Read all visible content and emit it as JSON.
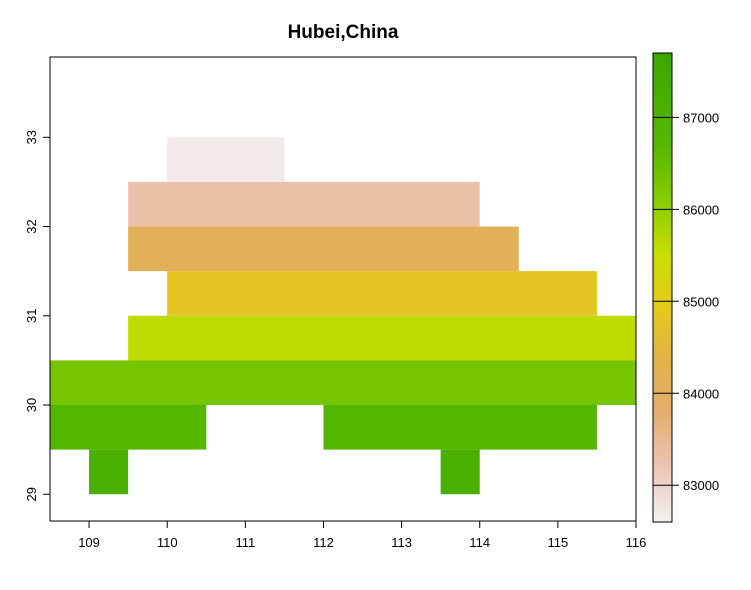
{
  "chart_data": {
    "type": "heatmap",
    "title": "Hubei,China",
    "xlabel": "",
    "ylabel": "",
    "xlim": [
      108.5,
      116
    ],
    "ylim": [
      28.7,
      33.9
    ],
    "x_ticks": [
      109,
      110,
      111,
      112,
      113,
      114,
      115,
      116
    ],
    "y_ticks": [
      29,
      30,
      31,
      32,
      33
    ],
    "cell_size": 0.5,
    "cells": [
      {
        "x0": 110,
        "x1": 111.5,
        "y0": 32.5,
        "y1": 33,
        "value": 82700
      },
      {
        "x0": 109.5,
        "x1": 114,
        "y0": 32,
        "y1": 32.5,
        "value": 83300
      },
      {
        "x0": 109.5,
        "x1": 114.5,
        "y0": 31.5,
        "y1": 32,
        "value": 84100
      },
      {
        "x0": 110,
        "x1": 115.5,
        "y0": 31,
        "y1": 31.5,
        "value": 84800
      },
      {
        "x0": 109.5,
        "x1": 116,
        "y0": 30.5,
        "y1": 31,
        "value": 85600
      },
      {
        "x0": 108.5,
        "x1": 116,
        "y0": 30,
        "y1": 30.5,
        "value": 86300
      },
      {
        "x0": 108.5,
        "x1": 110.5,
        "y0": 29.5,
        "y1": 30,
        "value": 86800
      },
      {
        "x0": 112,
        "x1": 115.5,
        "y0": 29.5,
        "y1": 30,
        "value": 86800
      },
      {
        "x0": 109,
        "x1": 109.5,
        "y0": 29,
        "y1": 29.5,
        "value": 87200
      },
      {
        "x0": 113.5,
        "x1": 114,
        "y0": 29,
        "y1": 29.5,
        "value": 87200
      }
    ],
    "legend": {
      "position": "right",
      "range": [
        82600,
        87700
      ],
      "ticks": [
        83000,
        84000,
        85000,
        86000,
        87000
      ],
      "ticks_text": [
        "83000",
        "84000",
        "85000",
        "86000",
        "87000"
      ]
    },
    "colormap_stops": [
      {
        "v": 82600,
        "c": "#f2f2f2"
      },
      {
        "v": 83200,
        "c": "#ecc4b4"
      },
      {
        "v": 83800,
        "c": "#e4ad6c"
      },
      {
        "v": 84400,
        "c": "#e2b347"
      },
      {
        "v": 84900,
        "c": "#e6c81a"
      },
      {
        "v": 85500,
        "c": "#c9de00"
      },
      {
        "v": 86100,
        "c": "#87cc00"
      },
      {
        "v": 86700,
        "c": "#55b800"
      },
      {
        "v": 87700,
        "c": "#3da600"
      }
    ],
    "grid": false
  }
}
